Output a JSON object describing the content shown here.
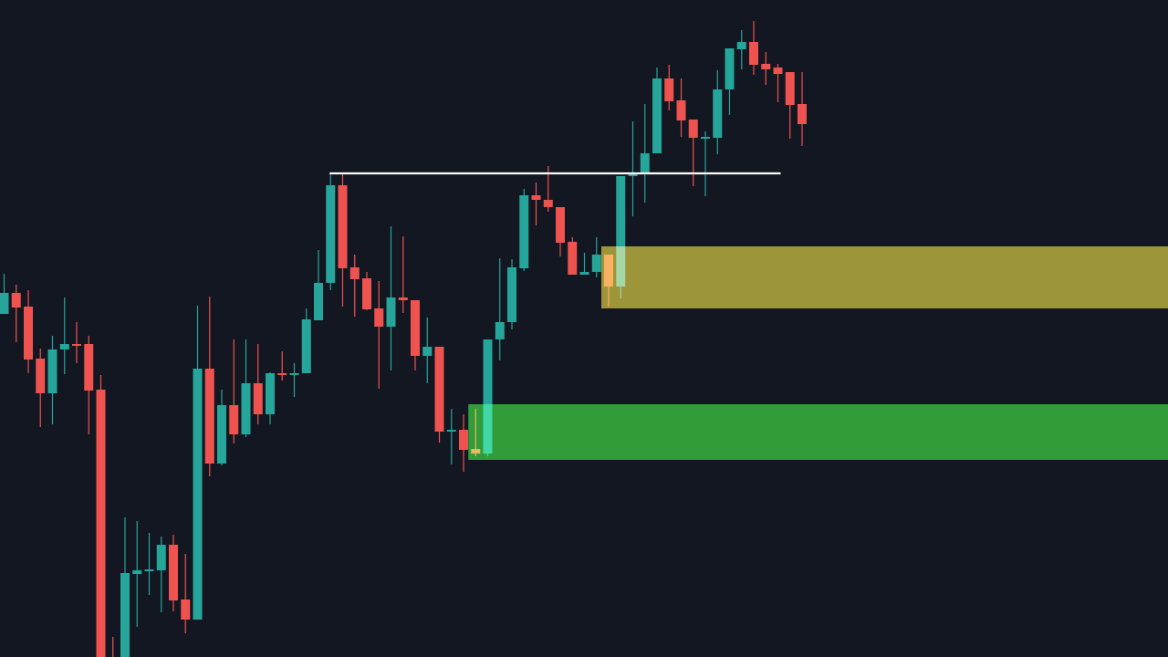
{
  "chart_data": {
    "type": "candlestick",
    "title": "",
    "xlabel": "",
    "ylabel": "",
    "axes_visible": false,
    "grid": false,
    "ylim": [
      8,
      80
    ],
    "candle_fields": [
      "open",
      "high",
      "low",
      "close"
    ],
    "colors": {
      "background": "#131722",
      "up": "#26a69a",
      "down": "#ef5350",
      "level_line": "#ffffff"
    },
    "candles": [
      [
        45.6,
        50.0,
        45.6,
        47.9
      ],
      [
        47.9,
        48.8,
        42.5,
        46.3
      ],
      [
        46.4,
        48.2,
        39.1,
        40.6
      ],
      [
        40.7,
        41.8,
        33.2,
        36.9
      ],
      [
        36.9,
        43.2,
        33.5,
        41.7
      ],
      [
        41.7,
        47.4,
        39.0,
        42.3
      ],
      [
        42.3,
        44.7,
        40.2,
        42.2
      ],
      [
        42.3,
        43.2,
        32.4,
        37.2
      ],
      [
        37.3,
        38.9,
        2.0,
        4.0
      ],
      [
        4.0,
        10.2,
        1.0,
        2.5
      ],
      [
        6.0,
        23.3,
        4.0,
        17.2
      ],
      [
        17.1,
        22.9,
        11.3,
        17.5
      ],
      [
        17.4,
        21.6,
        14.8,
        17.6
      ],
      [
        17.5,
        21.2,
        12.9,
        20.3
      ],
      [
        20.3,
        21.4,
        13.0,
        14.2
      ],
      [
        14.3,
        19.3,
        10.6,
        12.1
      ],
      [
        12.1,
        46.5,
        12.1,
        39.6
      ],
      [
        39.6,
        47.5,
        27.8,
        29.2
      ],
      [
        29.2,
        37.3,
        29.0,
        35.6
      ],
      [
        35.6,
        42.8,
        31.4,
        32.4
      ],
      [
        32.4,
        42.8,
        32.1,
        38.0
      ],
      [
        38.0,
        42.3,
        33.5,
        34.6
      ],
      [
        34.6,
        39.2,
        33.5,
        39.1
      ],
      [
        39.1,
        41.5,
        38.3,
        38.9
      ],
      [
        38.9,
        40.2,
        36.5,
        39.1
      ],
      [
        39.1,
        46.2,
        39.1,
        45.0
      ],
      [
        44.9,
        52.6,
        44.9,
        49.0
      ],
      [
        49.0,
        60.9,
        48.2,
        59.7
      ],
      [
        59.7,
        60.9,
        46.4,
        50.6
      ],
      [
        50.7,
        52.1,
        45.3,
        49.4
      ],
      [
        49.5,
        50.2,
        46.0,
        46.1
      ],
      [
        46.2,
        49.2,
        37.4,
        44.2
      ],
      [
        44.2,
        55.2,
        39.4,
        47.4
      ],
      [
        47.4,
        54.1,
        45.7,
        47.1
      ],
      [
        47.1,
        47.1,
        39.4,
        41.0
      ],
      [
        41.0,
        45.2,
        38.0,
        42.0
      ],
      [
        42.0,
        42.0,
        31.5,
        32.7
      ],
      [
        32.7,
        35.2,
        29.1,
        32.9
      ],
      [
        32.9,
        34.6,
        28.3,
        30.7
      ],
      [
        30.8,
        35.2,
        30.0,
        30.3
      ],
      [
        30.3,
        42.8,
        30.0,
        42.8
      ],
      [
        42.8,
        51.7,
        40.5,
        44.7
      ],
      [
        44.7,
        51.6,
        43.9,
        50.7
      ],
      [
        50.6,
        59.3,
        50.3,
        58.6
      ],
      [
        58.6,
        60.0,
        55.3,
        58.1
      ],
      [
        58.1,
        61.8,
        56.8,
        57.3
      ],
      [
        57.3,
        57.3,
        51.9,
        53.4
      ],
      [
        53.5,
        54.0,
        49.9,
        49.9
      ],
      [
        49.9,
        52.3,
        49.9,
        50.2
      ],
      [
        50.2,
        54.0,
        49.6,
        52.1
      ],
      [
        52.1,
        52.1,
        46.4,
        48.6
      ],
      [
        48.6,
        60.7,
        47.3,
        60.7
      ],
      [
        60.7,
        66.7,
        56.3,
        61.1
      ],
      [
        61.0,
        68.6,
        57.8,
        63.2
      ],
      [
        63.2,
        72.6,
        63.2,
        71.4
      ],
      [
        71.4,
        72.9,
        67.9,
        68.9
      ],
      [
        69.0,
        71.4,
        65.0,
        66.8
      ],
      [
        66.9,
        66.9,
        59.6,
        64.9
      ],
      [
        64.9,
        65.6,
        58.5,
        65.0
      ],
      [
        64.9,
        72.3,
        63.1,
        70.2
      ],
      [
        70.2,
        74.7,
        67.4,
        74.7
      ],
      [
        74.6,
        76.7,
        72.4,
        75.4
      ],
      [
        75.4,
        77.7,
        71.8,
        72.9
      ],
      [
        73.0,
        74.3,
        70.7,
        72.4
      ],
      [
        72.6,
        73.0,
        68.8,
        71.9
      ],
      [
        72.1,
        72.1,
        64.8,
        68.5
      ],
      [
        68.6,
        72.1,
        64.0,
        66.4
      ]
    ],
    "level_line": {
      "price": 61.0,
      "from_candle": 28,
      "to_candle": 65
    },
    "zones": [
      {
        "name": "supply-zone",
        "top": 53.0,
        "bottom": 46.2,
        "from_candle": 51,
        "extends_right": true,
        "color": "#958a1c"
      },
      {
        "name": "demand-zone",
        "top": 35.7,
        "bottom": 29.6,
        "from_candle": 40,
        "extends_right": true,
        "color": "#1f931c"
      }
    ]
  }
}
